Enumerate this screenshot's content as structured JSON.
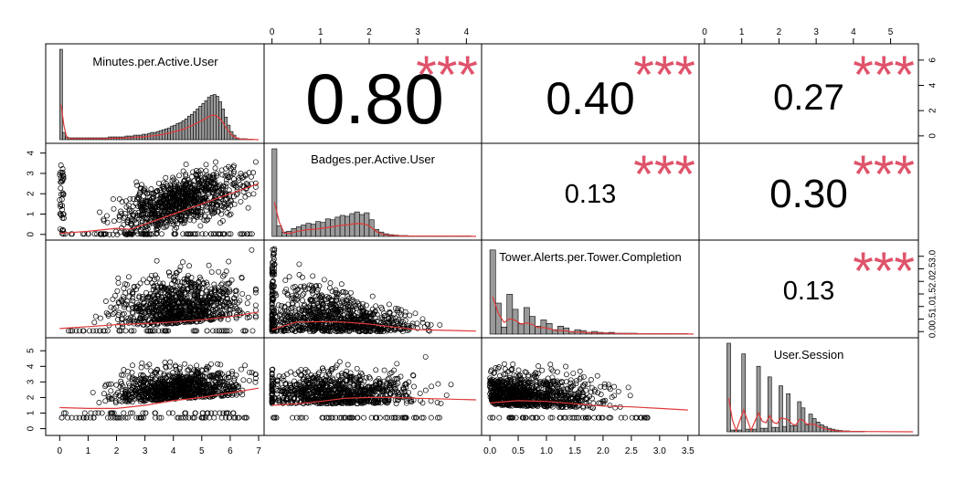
{
  "chart_data": {
    "type": "scatter-matrix",
    "title": "",
    "variables": [
      "Minutes.per.Active.User",
      "Badges.per.Active.User",
      "Tower.Alerts.per.Tower.Completion",
      "User.Session"
    ],
    "correlations": [
      {
        "row": 1,
        "col": 2,
        "pair": [
          "Minutes.per.Active.User",
          "Badges.per.Active.User"
        ],
        "value": 0.8,
        "label": "0.80",
        "stars": "***"
      },
      {
        "row": 1,
        "col": 3,
        "pair": [
          "Minutes.per.Active.User",
          "Tower.Alerts.per.Tower.Completion"
        ],
        "value": 0.4,
        "label": "0.40",
        "stars": "***"
      },
      {
        "row": 1,
        "col": 4,
        "pair": [
          "Minutes.per.Active.User",
          "User.Session"
        ],
        "value": 0.27,
        "label": "0.27",
        "stars": "***"
      },
      {
        "row": 2,
        "col": 3,
        "pair": [
          "Badges.per.Active.User",
          "Tower.Alerts.per.Tower.Completion"
        ],
        "value": 0.13,
        "label": "0.13",
        "stars": "***"
      },
      {
        "row": 2,
        "col": 4,
        "pair": [
          "Badges.per.Active.User",
          "User.Session"
        ],
        "value": 0.3,
        "label": "0.30",
        "stars": "***"
      },
      {
        "row": 3,
        "col": 4,
        "pair": [
          "Tower.Alerts.per.Tower.Completion",
          "User.Session"
        ],
        "value": 0.13,
        "label": "0.13",
        "stars": "***"
      }
    ],
    "axes": {
      "bottom": [
        {
          "var": "Minutes.per.Active.User",
          "range": [
            -0.3,
            7.0
          ],
          "ticks": [
            "0",
            "1",
            "2",
            "3",
            "4",
            "5",
            "6",
            "7"
          ]
        },
        {
          "var": "Tower.Alerts.per.Tower.Completion",
          "range": [
            -0.05,
            3.6
          ],
          "ticks": [
            "0.0",
            "0.5",
            "1.0",
            "1.5",
            "2.0",
            "2.5",
            "3.0",
            "3.5"
          ]
        }
      ],
      "top": [
        {
          "var": "Badges.per.Active.User",
          "range": [
            -0.05,
            4.2
          ],
          "ticks": [
            "0",
            "1",
            "2",
            "3",
            "4"
          ]
        },
        {
          "var": "User.Session",
          "range": [
            0,
            5.6
          ],
          "ticks": [
            "0",
            "1",
            "2",
            "3",
            "4",
            "5"
          ]
        }
      ],
      "left": [
        {
          "var": "Badges.per.Active.User",
          "range": [
            -0.1,
            4.3
          ],
          "ticks": [
            "0",
            "1",
            "2",
            "3",
            "4"
          ]
        },
        {
          "var": "User.Session",
          "range": [
            -0.2,
            5.6
          ],
          "ticks": [
            "0",
            "1",
            "2",
            "3",
            "4",
            "5"
          ]
        }
      ],
      "right": [
        {
          "var": "Minutes.per.Active.User",
          "range": [
            -0.3,
            7.0
          ],
          "ticks": [
            "0",
            "2",
            "4",
            "6"
          ]
        },
        {
          "var": "Tower.Alerts.per.Tower.Completion",
          "range": [
            -0.1,
            3.5
          ],
          "ticks": [
            "0.0",
            "0.5",
            "1.0",
            "1.5",
            "2.0",
            "2.5",
            "3.0"
          ]
        }
      ]
    },
    "histograms": [
      {
        "var": "Minutes.per.Active.User",
        "bin_start": 0,
        "bin_width": 0.1,
        "counts": [
          1.0,
          0.08,
          0.03,
          0.02,
          0.02,
          0.02,
          0.02,
          0.02,
          0.02,
          0.02,
          0.02,
          0.02,
          0.02,
          0.02,
          0.02,
          0.02,
          0.02,
          0.03,
          0.03,
          0.03,
          0.03,
          0.03,
          0.03,
          0.04,
          0.04,
          0.04,
          0.05,
          0.05,
          0.05,
          0.06,
          0.06,
          0.07,
          0.08,
          0.08,
          0.09,
          0.1,
          0.11,
          0.12,
          0.13,
          0.15,
          0.16,
          0.18,
          0.19,
          0.21,
          0.23,
          0.26,
          0.28,
          0.31,
          0.34,
          0.37,
          0.4,
          0.43,
          0.47,
          0.49,
          0.5,
          0.48,
          0.42,
          0.34,
          0.25,
          0.16,
          0.09,
          0.05,
          0.02,
          0.01,
          0.01,
          0.01,
          0.005,
          0.005
        ]
      },
      {
        "var": "Badges.per.Active.User",
        "bin_start": 0,
        "bin_width": 0.1,
        "counts": [
          1.0,
          0.12,
          0.05,
          0.06,
          0.09,
          0.11,
          0.13,
          0.15,
          0.14,
          0.17,
          0.16,
          0.2,
          0.19,
          0.22,
          0.24,
          0.23,
          0.26,
          0.28,
          0.25,
          0.27,
          0.19,
          0.08,
          0.05,
          0.03,
          0.02,
          0.015,
          0.01,
          0.01,
          0.005,
          0.005,
          0.005,
          0.005,
          0.005,
          0.005,
          0.005,
          0.005,
          0.005,
          0.005,
          0.005,
          0.005,
          0.005
        ]
      },
      {
        "var": "Tower.Alerts.per.Tower.Completion",
        "bin_start": 0,
        "bin_width": 0.1,
        "counts": [
          0.95,
          0.35,
          0.08,
          0.45,
          0.28,
          0.12,
          0.3,
          0.2,
          0.09,
          0.16,
          0.12,
          0.05,
          0.09,
          0.07,
          0.03,
          0.05,
          0.04,
          0.02,
          0.03,
          0.02,
          0.015,
          0.02,
          0.01,
          0.01,
          0.01,
          0.01,
          0.005,
          0.005,
          0.005,
          0.005,
          0.005,
          0.005,
          0.005,
          0.005,
          0.005
        ]
      },
      {
        "var": "User.Session",
        "bin_start": 0.6,
        "bin_width": 0.1,
        "counts": [
          1.0,
          0.02,
          0.02,
          0.02,
          0.88,
          0.03,
          0.03,
          0.03,
          0.74,
          0.04,
          0.04,
          0.62,
          0.05,
          0.05,
          0.52,
          0.06,
          0.43,
          0.07,
          0.07,
          0.34,
          0.27,
          0.08,
          0.2,
          0.15,
          0.11,
          0.08,
          0.06,
          0.04,
          0.03,
          0.02,
          0.015,
          0.01,
          0.01,
          0.005,
          0.005,
          0.005,
          0.005
        ]
      }
    ],
    "smooth_lines": [
      {
        "pair": "Minutes-vs-Badges",
        "x": [
          0,
          1,
          2,
          2.5,
          3,
          4,
          5,
          6,
          7
        ],
        "y": [
          0.05,
          0.15,
          0.3,
          0.25,
          0.5,
          1.0,
          1.5,
          2.0,
          2.5
        ]
      },
      {
        "pair": "Minutes-vs-TowerAlerts",
        "x": [
          0,
          1,
          2,
          3,
          4,
          5,
          6,
          7
        ],
        "y": [
          0.12,
          0.2,
          0.28,
          0.32,
          0.38,
          0.47,
          0.6,
          0.78
        ]
      },
      {
        "pair": "Minutes-vs-Session",
        "x": [
          0,
          1,
          2,
          3,
          4,
          5,
          6,
          7
        ],
        "y": [
          1.35,
          1.3,
          1.3,
          1.5,
          1.8,
          2.0,
          2.3,
          2.6
        ]
      },
      {
        "pair": "Badges-vs-TowerAlerts",
        "x": [
          0,
          0.5,
          1,
          1.5,
          2,
          2.5,
          3,
          4.2
        ],
        "y": [
          0.08,
          0.38,
          0.4,
          0.38,
          0.3,
          0.18,
          0.08,
          0.02
        ]
      },
      {
        "pair": "Badges-vs-Session",
        "x": [
          0,
          0.5,
          1,
          1.5,
          2,
          2.5,
          3,
          4.2
        ],
        "y": [
          1.5,
          1.6,
          1.75,
          1.95,
          2.0,
          2.0,
          1.95,
          1.85
        ]
      },
      {
        "pair": "TowerAlerts-vs-Session",
        "x": [
          0,
          0.5,
          1,
          1.5,
          2,
          2.5,
          3,
          3.5
        ],
        "y": [
          1.65,
          1.8,
          1.75,
          1.6,
          1.45,
          1.4,
          1.3,
          1.2
        ]
      }
    ],
    "grid": false,
    "legend": "none",
    "colors": {
      "smooth": "#e03a3a",
      "stars": "#df536b",
      "point": "#000000",
      "bar": "#9a9a9a"
    }
  }
}
